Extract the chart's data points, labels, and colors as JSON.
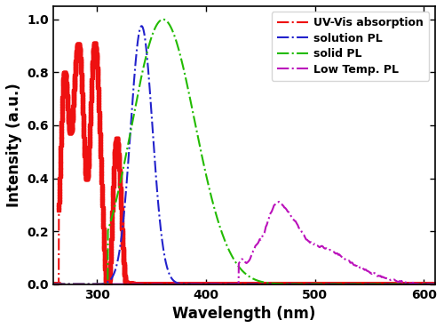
{
  "xlabel": "Wavelength (nm)",
  "ylabel": "Intensity (a.u.)",
  "xlim": [
    260,
    610
  ],
  "ylim": [
    0.0,
    1.05
  ],
  "yticks": [
    0.0,
    0.2,
    0.4,
    0.6,
    0.8,
    1.0
  ],
  "xticks": [
    300,
    400,
    500,
    600
  ],
  "legend_labels": [
    "UV-Vis absorption",
    "solution PL",
    "solid PL",
    "Low Temp. PL"
  ],
  "uv_vis_color": "#EE1111",
  "solution_color": "#2222CC",
  "solid_color": "#22BB00",
  "lowtemp_color": "#BB11BB",
  "linewidth": 1.5,
  "marker_size": 3.5,
  "axis_label_fontsize": 12,
  "tick_fontsize": 10,
  "legend_fontsize": 9
}
